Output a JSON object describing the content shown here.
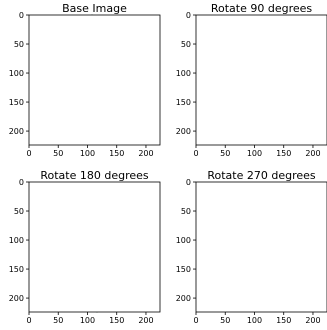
{
  "chart_data": [
    {
      "type": "image",
      "title": "Base Image",
      "orientation_degrees": 0,
      "xlim": [
        0,
        224
      ],
      "ylim": [
        224,
        0
      ],
      "x_ticks": [
        0,
        50,
        100,
        150,
        200
      ],
      "y_ticks": [
        0,
        50,
        100,
        150,
        200
      ],
      "grid": false
    },
    {
      "type": "image",
      "title": "Rotate 90 degrees",
      "orientation_degrees": 90,
      "xlim": [
        0,
        224
      ],
      "ylim": [
        224,
        0
      ],
      "x_ticks": [
        0,
        50,
        100,
        150,
        200
      ],
      "y_ticks": [
        0,
        50,
        100,
        150,
        200
      ],
      "grid": false
    },
    {
      "type": "image",
      "title": "Rotate 180 degrees",
      "orientation_degrees": 180,
      "xlim": [
        0,
        224
      ],
      "ylim": [
        224,
        0
      ],
      "x_ticks": [
        0,
        50,
        100,
        150,
        200
      ],
      "y_ticks": [
        0,
        50,
        100,
        150,
        200
      ],
      "grid": false
    },
    {
      "type": "image",
      "title": "Rotate 270 degrees",
      "orientation_degrees": 270,
      "xlim": [
        0,
        224
      ],
      "ylim": [
        224,
        0
      ],
      "x_ticks": [
        0,
        50,
        100,
        150,
        200
      ],
      "y_ticks": [
        0,
        50,
        100,
        150,
        200
      ],
      "grid": false
    }
  ],
  "colors": {
    "fruit_light": "#f6d04a",
    "fruit_mid": "#f0a02a",
    "fruit_dark": "#e27015",
    "leaf_dark": "#2e6b35",
    "leaf_light": "#7fae5a",
    "axis": "#000000"
  }
}
